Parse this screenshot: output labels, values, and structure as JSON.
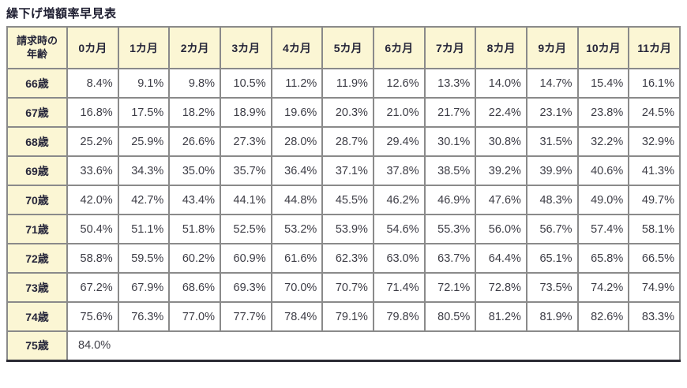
{
  "title": "繰下げ増額率早見表",
  "table": {
    "corner_line1": "請求時の",
    "corner_line2": "年齢",
    "month_headers": [
      "0カ月",
      "1カ月",
      "2カ月",
      "3カ月",
      "4カ月",
      "5カ月",
      "6カ月",
      "7カ月",
      "8カ月",
      "9カ月",
      "10カ月",
      "11カ月"
    ],
    "rows": [
      {
        "age": "66歳",
        "values": [
          "8.4%",
          "9.1%",
          "9.8%",
          "10.5%",
          "11.2%",
          "11.9%",
          "12.6%",
          "13.3%",
          "14.0%",
          "14.7%",
          "15.4%",
          "16.1%"
        ]
      },
      {
        "age": "67歳",
        "values": [
          "16.8%",
          "17.5%",
          "18.2%",
          "18.9%",
          "19.6%",
          "20.3%",
          "21.0%",
          "21.7%",
          "22.4%",
          "23.1%",
          "23.8%",
          "24.5%"
        ]
      },
      {
        "age": "68歳",
        "values": [
          "25.2%",
          "25.9%",
          "26.6%",
          "27.3%",
          "28.0%",
          "28.7%",
          "29.4%",
          "30.1%",
          "30.8%",
          "31.5%",
          "32.2%",
          "32.9%"
        ]
      },
      {
        "age": "69歳",
        "values": [
          "33.6%",
          "34.3%",
          "35.0%",
          "35.7%",
          "36.4%",
          "37.1%",
          "37.8%",
          "38.5%",
          "39.2%",
          "39.9%",
          "40.6%",
          "41.3%"
        ]
      },
      {
        "age": "70歳",
        "values": [
          "42.0%",
          "42.7%",
          "43.4%",
          "44.1%",
          "44.8%",
          "45.5%",
          "46.2%",
          "46.9%",
          "47.6%",
          "48.3%",
          "49.0%",
          "49.7%"
        ]
      },
      {
        "age": "71歳",
        "values": [
          "50.4%",
          "51.1%",
          "51.8%",
          "52.5%",
          "53.2%",
          "53.9%",
          "54.6%",
          "55.3%",
          "56.0%",
          "56.7%",
          "57.4%",
          "58.1%"
        ]
      },
      {
        "age": "72歳",
        "values": [
          "58.8%",
          "59.5%",
          "60.2%",
          "60.9%",
          "61.6%",
          "62.3%",
          "63.0%",
          "63.7%",
          "64.4%",
          "65.1%",
          "65.8%",
          "66.5%"
        ]
      },
      {
        "age": "73歳",
        "values": [
          "67.2%",
          "67.9%",
          "68.6%",
          "69.3%",
          "70.0%",
          "70.7%",
          "71.4%",
          "72.1%",
          "72.8%",
          "73.5%",
          "74.2%",
          "74.9%"
        ]
      },
      {
        "age": "74歳",
        "values": [
          "75.6%",
          "76.3%",
          "77.0%",
          "77.7%",
          "78.4%",
          "79.1%",
          "79.8%",
          "80.5%",
          "81.2%",
          "81.9%",
          "82.6%",
          "83.3%"
        ]
      },
      {
        "age": "75歳",
        "values": [
          "84.0%"
        ],
        "merged": true
      }
    ]
  },
  "colors": {
    "header_bg": "#fbf6d4",
    "border": "#8a8a8a",
    "bottom_border": "#2a2a33",
    "title_color": "#1d1d30",
    "value_color": "#3d3d46"
  }
}
